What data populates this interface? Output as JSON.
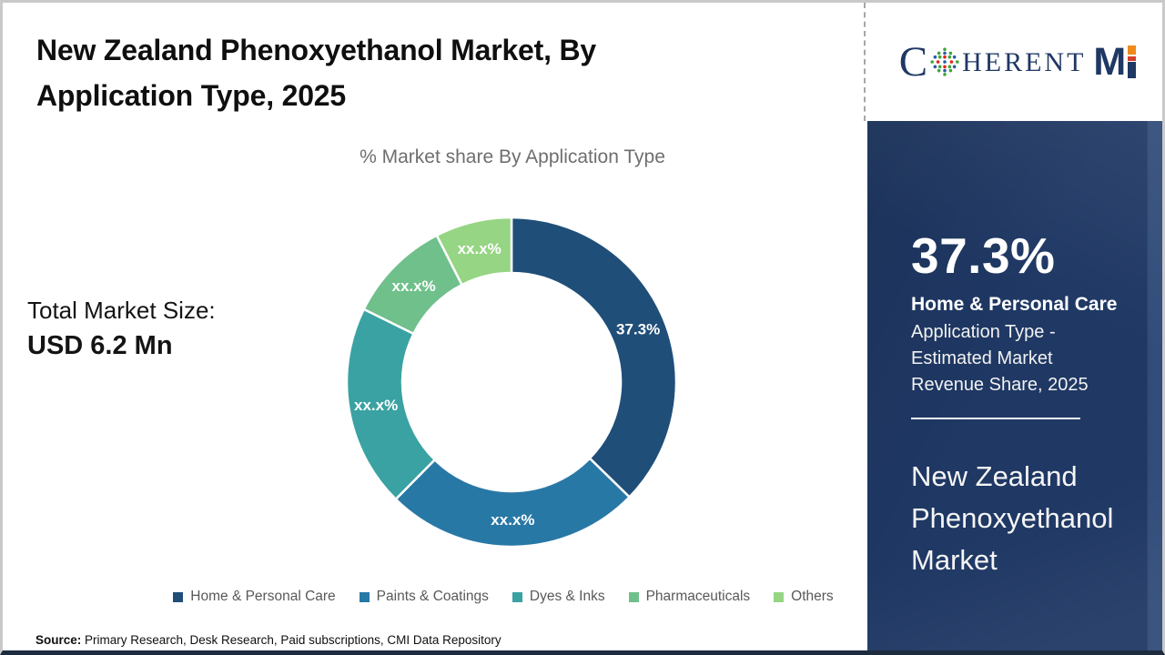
{
  "header": {
    "title": "New Zealand Phenoxyethanol Market, By Application Type, 2025",
    "subtitle": "% Market share By Application Type"
  },
  "total_market": {
    "label": "Total Market Size:",
    "value": "USD 6.2 Mn"
  },
  "chart_data": {
    "type": "pie",
    "donut": true,
    "title": "% Market share By Application Type",
    "start_angle_deg": 0,
    "direction": "clockwise",
    "legend_position": "bottom",
    "series": [
      {
        "name": "Home & Personal Care",
        "value": 37.3,
        "display_label": "37.3%",
        "color": "#1F4E79"
      },
      {
        "name": "Paints & Coatings",
        "value": 25.1,
        "display_label": "xx.x%",
        "color": "#2878A6"
      },
      {
        "name": "Dyes & Inks",
        "value": 19.9,
        "display_label": "xx.x%",
        "color": "#3AA2A2"
      },
      {
        "name": "Pharmaceuticals",
        "value": 10.2,
        "display_label": "xx.x%",
        "color": "#6FC08B"
      },
      {
        "name": "Others",
        "value": 7.5,
        "display_label": "xx.x%",
        "color": "#96D583"
      }
    ]
  },
  "source": {
    "label": "Source:",
    "text": " Primary Research, Desk Research, Paid subscriptions, CMI Data Repository"
  },
  "logo": {
    "brand": "CoherentMI",
    "part_c": "C",
    "part_herent": "HERENT",
    "part_m": "M",
    "globe_icon": "dotted-globe-icon",
    "navy": "#1F3864",
    "orange": "#F08A1D"
  },
  "side_panel": {
    "bg_color": "#1F3864",
    "stat_value": "37.3%",
    "stat_title": "Home & Personal Care",
    "stat_description": "Application Type - Estimated Market Revenue Share, 2025",
    "market_name": "New Zealand Phenoxyethanol Market"
  }
}
